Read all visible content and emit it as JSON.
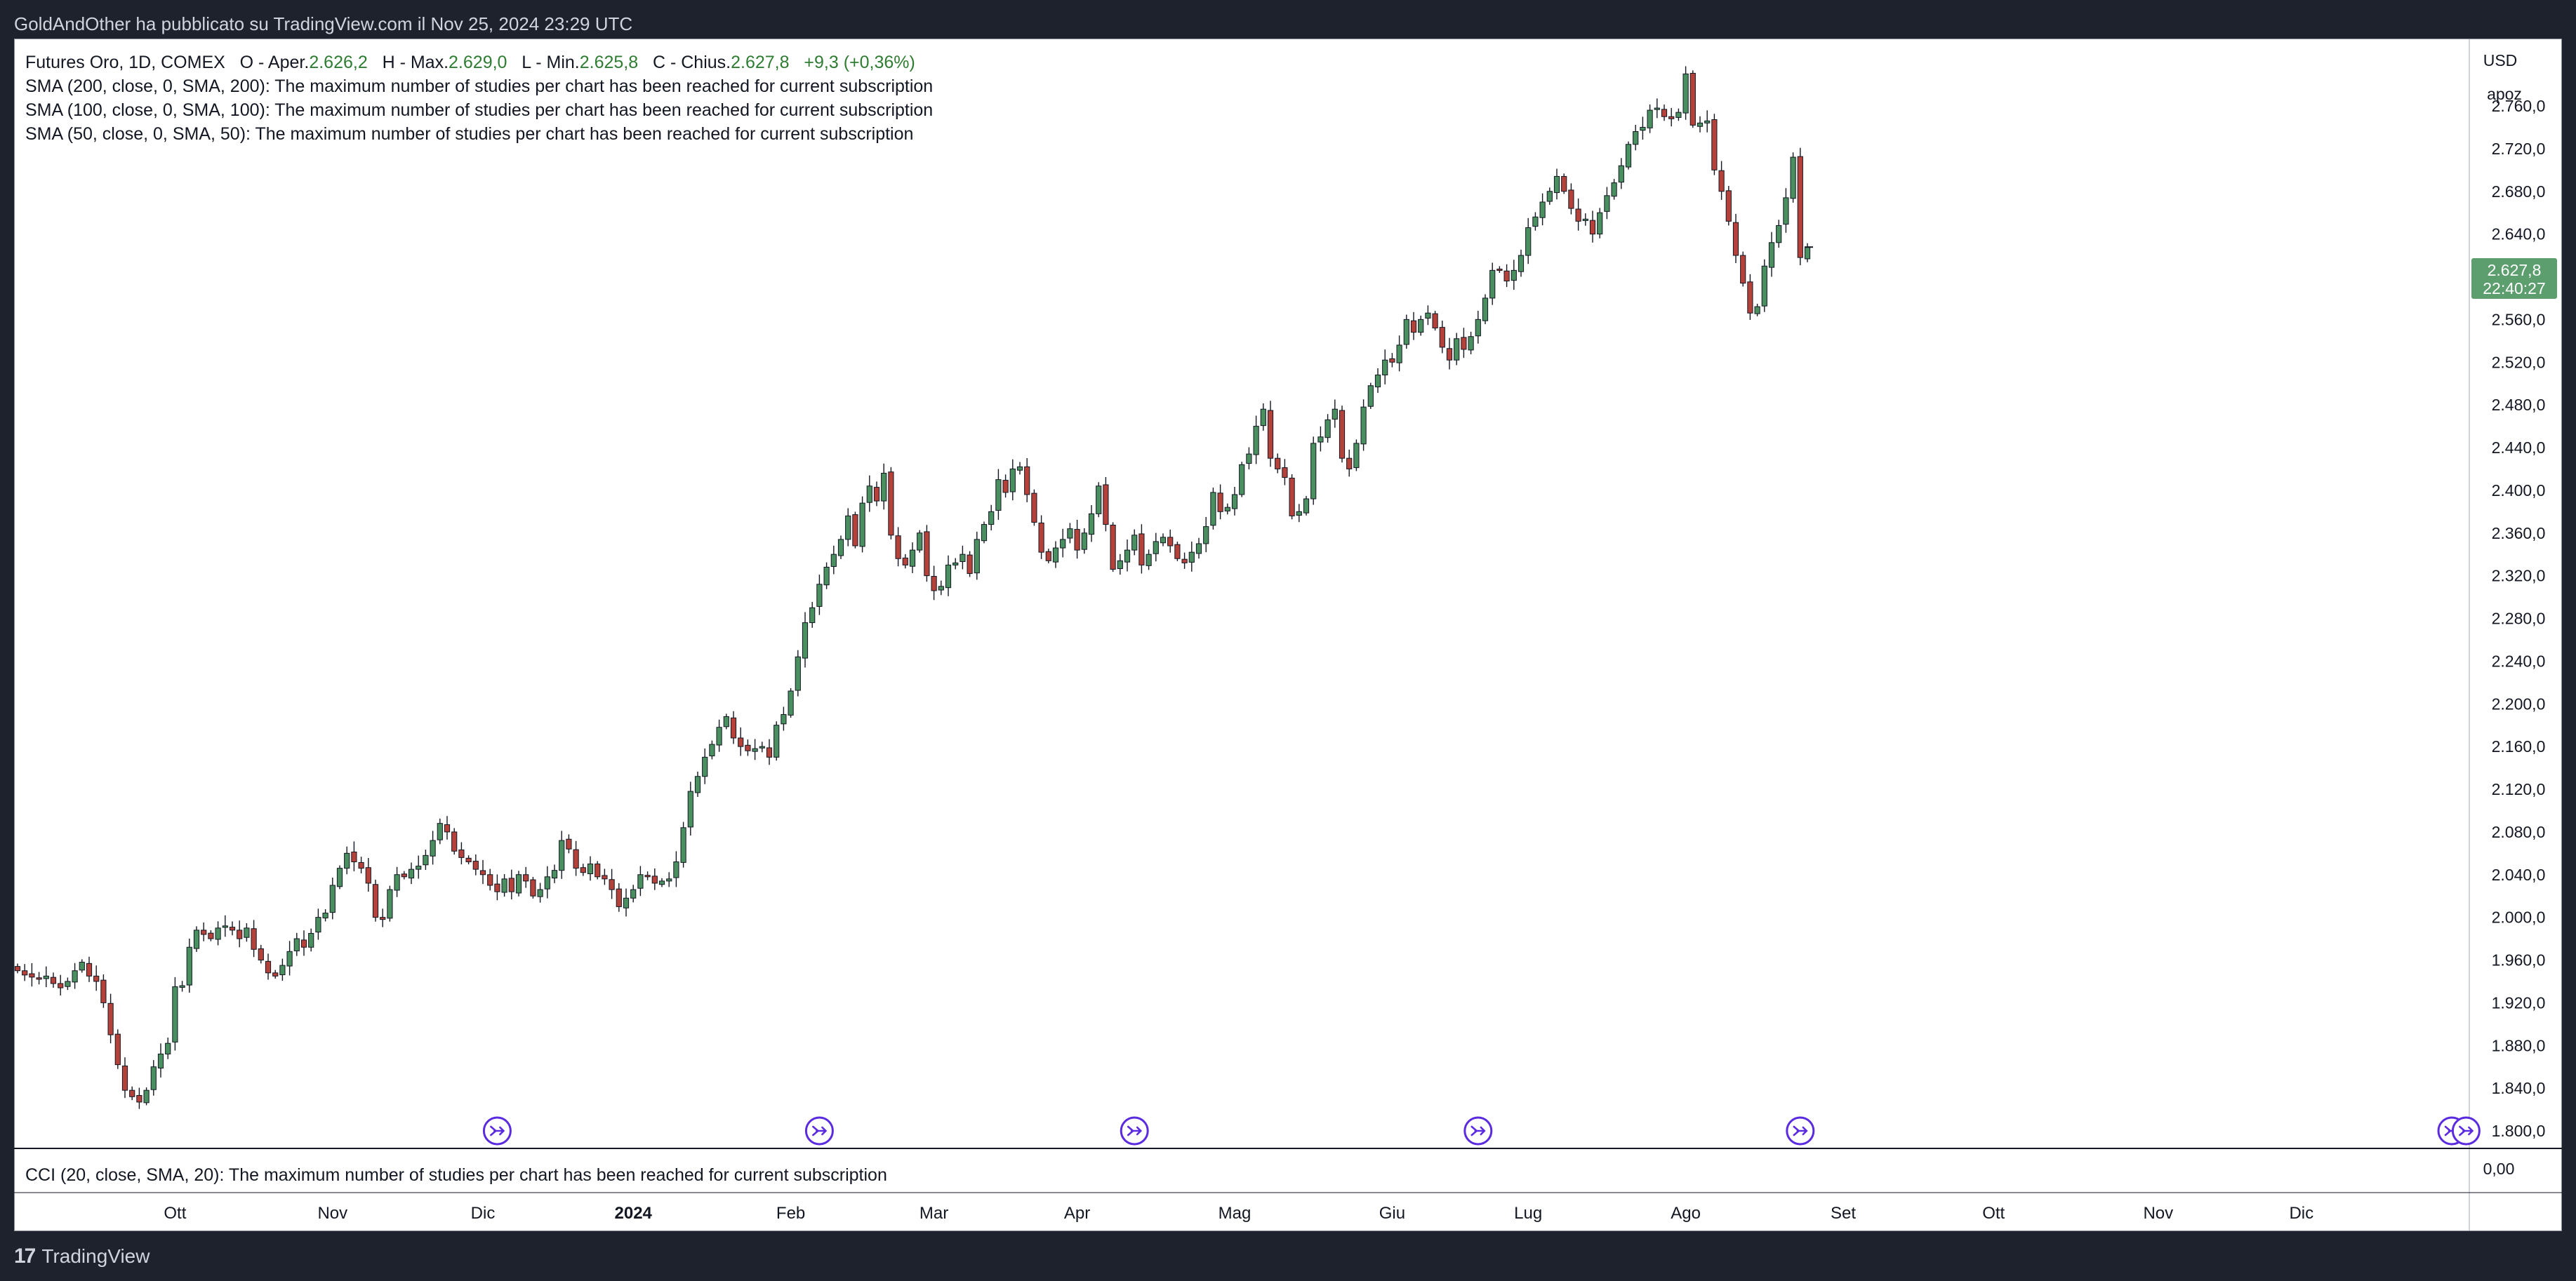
{
  "header": {
    "attribution": "GoldAndOther ha pubblicato su TradingView.com il Nov 25, 2024 23:29 UTC"
  },
  "legend": {
    "symbol": "Futures Oro, 1D, COMEX",
    "open_label": "O - Aper.",
    "open_value": "2.626,2",
    "high_label": "H - Max.",
    "high_value": "2.629,0",
    "low_label": "L - Min.",
    "low_value": "2.625,8",
    "close_label": "C - Chius.",
    "close_value": "2.627,8",
    "change": "+9,3 (+0,36%)",
    "sma200": "SMA (200, close, 0, SMA, 200): The maximum number of studies per chart has been reached for current subscription",
    "sma100": "SMA (100, close, 0, SMA, 100): The maximum number of studies per chart has been reached for current subscription",
    "sma50": "SMA (50, close, 0, SMA, 50): The maximum number of studies per chart has been reached for current subscription"
  },
  "axis": {
    "currency": "USD",
    "scale_mode": "apoz",
    "price_tag": "2.627,8",
    "countdown": "22:40:27",
    "cci_zero": "0,00"
  },
  "cci_panel": {
    "label": "CCI (20, close, SMA, 20): The maximum number of studies per chart has been reached for current subscription"
  },
  "footer": {
    "brand": "TradingView"
  },
  "colors": {
    "up": "#4a8f5f",
    "down": "#b5413b",
    "price_tag": "#5c9e6e",
    "event_marker": "#5b2be0"
  },
  "chart_data": {
    "type": "candlestick",
    "y_ticks": [
      "2.760,0",
      "2.720,0",
      "2.680,0",
      "2.640,0",
      "2.600,0",
      "2.560,0",
      "2.520,0",
      "2.480,0",
      "2.440,0",
      "2.400,0",
      "2.360,0",
      "2.320,0",
      "2.280,0",
      "2.240,0",
      "2.200,0",
      "2.160,0",
      "2.120,0",
      "2.080,0",
      "2.040,0",
      "2.000,0",
      "1.960,0",
      "1.920,0",
      "1.880,0",
      "1.840,0",
      "1.800,0"
    ],
    "y_tick_values": [
      2760,
      2720,
      2680,
      2640,
      2600,
      2560,
      2520,
      2480,
      2440,
      2400,
      2360,
      2320,
      2280,
      2240,
      2200,
      2160,
      2120,
      2080,
      2040,
      2000,
      1960,
      1920,
      1880,
      1840,
      1800
    ],
    "ylim": [
      1798,
      2806
    ],
    "x_labels": [
      {
        "label": "Ott",
        "bar": 22,
        "bold": false
      },
      {
        "label": "Nov",
        "bar": 44,
        "bold": false
      },
      {
        "label": "Dic",
        "bar": 65,
        "bold": false
      },
      {
        "label": "2024",
        "bar": 86,
        "bold": true
      },
      {
        "label": "Feb",
        "bar": 108,
        "bold": false
      },
      {
        "label": "Mar",
        "bar": 128,
        "bold": false
      },
      {
        "label": "Apr",
        "bar": 148,
        "bold": false
      },
      {
        "label": "Mag",
        "bar": 170,
        "bold": false
      },
      {
        "label": "Giu",
        "bar": 192,
        "bold": false
      },
      {
        "label": "Lug",
        "bar": 211,
        "bold": false
      },
      {
        "label": "Ago",
        "bar": 233,
        "bold": false
      },
      {
        "label": "Set",
        "bar": 255,
        "bold": false
      },
      {
        "label": "Ott",
        "bar": 276,
        "bold": false
      },
      {
        "label": "Nov",
        "bar": 299,
        "bold": false
      },
      {
        "label": "Dic",
        "bar": 319,
        "bold": false
      }
    ],
    "closes": [
      1950,
      1946,
      1944,
      1942,
      1945,
      1938,
      1934,
      1940,
      1950,
      1958,
      1945,
      1940,
      1920,
      1890,
      1862,
      1838,
      1832,
      1827,
      1838,
      1860,
      1872,
      1882,
      1935,
      1936,
      1972,
      1988,
      1984,
      1980,
      1990,
      1992,
      1988,
      1980,
      1990,
      1970,
      1960,
      1948,
      1945,
      1955,
      1968,
      1980,
      1972,
      1985,
      2000,
      2004,
      2030,
      2046,
      2060,
      2052,
      2046,
      2032,
      2000,
      1998,
      2026,
      2040,
      2038,
      2045,
      2048,
      2058,
      2072,
      2088,
      2080,
      2062,
      2056,
      2052,
      2045,
      2040,
      2030,
      2024,
      2036,
      2024,
      2040,
      2034,
      2020,
      2026,
      2038,
      2044,
      2072,
      2064,
      2046,
      2042,
      2050,
      2038,
      2036,
      2026,
      2010,
      2018,
      2026,
      2040,
      2038,
      2032,
      2034,
      2036,
      2052,
      2084,
      2118,
      2132,
      2150,
      2162,
      2178,
      2188,
      2168,
      2160,
      2156,
      2158,
      2160,
      2150,
      2180,
      2190,
      2212,
      2244,
      2276,
      2290,
      2312,
      2328,
      2340,
      2354,
      2376,
      2348,
      2388,
      2404,
      2390,
      2416,
      2358,
      2336,
      2330,
      2344,
      2360,
      2320,
      2306,
      2310,
      2330,
      2332,
      2340,
      2322,
      2354,
      2368,
      2380,
      2410,
      2398,
      2420,
      2422,
      2396,
      2370,
      2342,
      2334,
      2346,
      2354,
      2364,
      2344,
      2360,
      2378,
      2404,
      2368,
      2326,
      2334,
      2344,
      2358,
      2330,
      2340,
      2352,
      2356,
      2348,
      2336,
      2332,
      2342,
      2350,
      2366,
      2398,
      2380,
      2384,
      2396,
      2424,
      2434,
      2460,
      2476,
      2430,
      2420,
      2412,
      2376,
      2380,
      2392,
      2444,
      2450,
      2466,
      2476,
      2430,
      2420,
      2444,
      2478,
      2498,
      2508,
      2522,
      2520,
      2536,
      2560,
      2548,
      2560,
      2566,
      2552,
      2534,
      2522,
      2542,
      2532,
      2544,
      2560,
      2580,
      2606,
      2606,
      2596,
      2606,
      2620,
      2646,
      2656,
      2670,
      2680,
      2694,
      2680,
      2664,
      2652,
      2654,
      2640,
      2660,
      2676,
      2688,
      2704,
      2724,
      2736,
      2740,
      2756,
      2758,
      2750,
      2748,
      2754,
      2790,
      2742,
      2744,
      2746,
      2700,
      2680,
      2652,
      2620,
      2594,
      2566,
      2572,
      2610,
      2632,
      2648,
      2674,
      2712,
      2618,
      2627.8
    ],
    "events": [
      67,
      112,
      156,
      204,
      249,
      340,
      342
    ]
  }
}
